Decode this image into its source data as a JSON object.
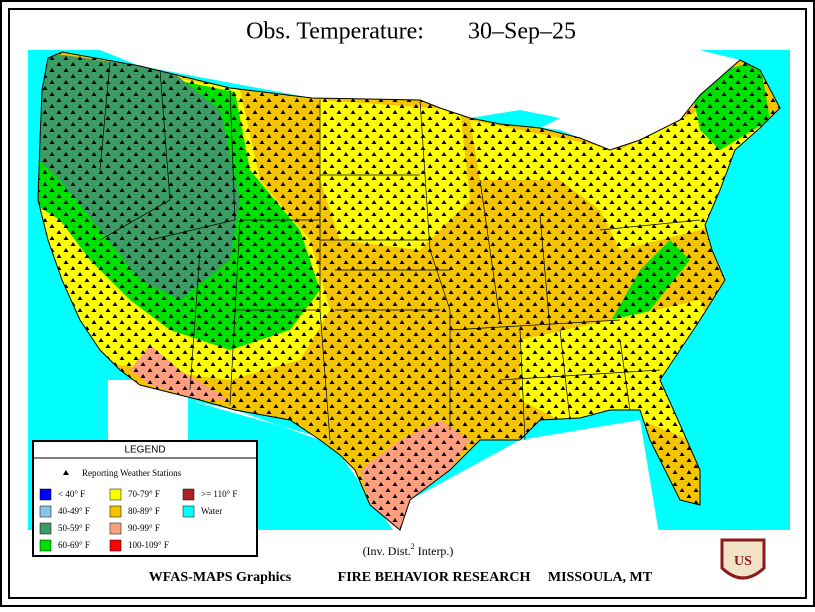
{
  "header": {
    "title": "Obs. Temperature:",
    "date": "30–Sep–25"
  },
  "legend": {
    "title": "LEGEND",
    "stations": "Reporting Weather Stations",
    "items": [
      {
        "label": "< 40° F",
        "color": "#0000ff"
      },
      {
        "label": "40-49° F",
        "color": "#87c4e8"
      },
      {
        "label": "50-59° F",
        "color": "#3c9c64"
      },
      {
        "label": "60-69° F",
        "color": "#00e000"
      },
      {
        "label": "70-79° F",
        "color": "#ffff00"
      },
      {
        "label": "80-89° F",
        "color": "#f5c400"
      },
      {
        "label": "90-99° F",
        "color": "#ff9f80"
      },
      {
        "label": "100-109° F",
        "color": "#ff0000"
      },
      {
        "label": ">= 110° F",
        "color": "#b22222"
      },
      {
        "label": "Water",
        "color": "#00ffff"
      }
    ]
  },
  "note": {
    "text": "(Inv. Dist.",
    "sup": "2",
    "end": " Interp.)"
  },
  "footer": {
    "left": "WFAS-MAPS Graphics",
    "center": "FIRE BEHAVIOR RESEARCH",
    "right": "MISSOULA, MT"
  },
  "logo": {
    "text": "US"
  }
}
